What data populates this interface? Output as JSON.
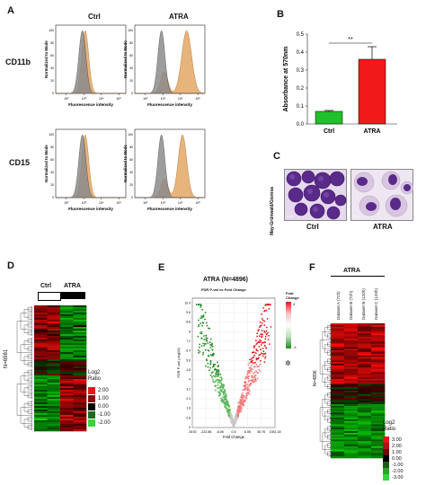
{
  "panels": {
    "A": {
      "letter": "A",
      "col_titles": [
        "Ctrl",
        "ATRA"
      ],
      "row_labels": [
        "CD11b",
        "CD15"
      ],
      "ylabel": "Normalized to Mode",
      "xlabel": "Fluorescence intensity",
      "ticks": [
        "10²",
        "10³",
        "10⁴",
        "10⁵"
      ],
      "yticks": [
        "0",
        "20",
        "40",
        "60",
        "80",
        "100"
      ]
    },
    "B": {
      "letter": "B",
      "sig": "**"
    },
    "C": {
      "letter": "C",
      "stain": "May-Grünwald/Giemsa",
      "labels": [
        "Ctrl",
        "ATRA"
      ],
      "scale": "8 μm"
    },
    "D": {
      "letter": "D",
      "cols": [
        "Ctrl",
        "ATRA"
      ],
      "n_label": "N=6981",
      "legend_title": "Log2\nRatio",
      "legend_title_l1": "Log2",
      "legend_title_l2": "Ratio",
      "legend_values": [
        "2.00",
        "1.00",
        "0.00",
        "-1.00",
        "-2.00"
      ],
      "legend_colors": [
        "#e8141b",
        "#8b0c0f",
        "#000000",
        "#1f6b1e",
        "#3bd33a"
      ]
    },
    "E": {
      "letter": "E",
      "title": "ATRA (N=4896)",
      "subtitle": "FDR P-val vs Fold Change",
      "legend_title_l1": "Fold",
      "legend_title_l2": "Change",
      "legend_max": "4",
      "legend_min": "-4"
    },
    "F": {
      "letter": "F",
      "title": "ATRA",
      "cols": [
        "Dataset A (72h)",
        "Dataset B (72h)",
        "Dataset B (120h)",
        "Dataset C (120h)"
      ],
      "n_label": "N=4896",
      "legend_title_l1": "Log2",
      "legend_title_l2": "Ratio",
      "legend_values": [
        "3.00",
        "2.00",
        "1.00",
        "0.00",
        "-1.00",
        "-2.00",
        "-3.00"
      ],
      "legend_colors": [
        "#e8141b",
        "#b31015",
        "#6b0a0c",
        "#000000",
        "#185c17",
        "#2aa229",
        "#3bd33a"
      ]
    }
  },
  "chart_data": [
    {
      "type": "bar",
      "panel": "B",
      "categories": [
        "Ctrl",
        "ATRA"
      ],
      "values": [
        0.07,
        0.36
      ],
      "errors": [
        0.005,
        0.07
      ],
      "colors": [
        "#22c02a",
        "#f01a1a"
      ],
      "ylabel": "Absorbance at 570nm",
      "ylim": [
        0,
        0.5
      ],
      "yticks": [
        "0.0",
        "0.1",
        "0.2",
        "0.3",
        "0.4",
        "0.5"
      ]
    },
    {
      "type": "scatter",
      "panel": "E",
      "title": "FDR P-val vs Fold Change",
      "xlabel": "Fold Change",
      "ylabel": "FDR P-val (-log10)",
      "x_ticks": [
        "-8192",
        "-222.86",
        "-6.06",
        "0.5",
        "6.06",
        "36.76",
        "1351.18"
      ],
      "y_ticks": [
        "0",
        "0.8",
        "1.6",
        "2.4",
        "3.2",
        "4",
        "4.8",
        "5.6",
        "6.4",
        "7.2",
        "8",
        "8.8",
        "9.6",
        "10.4"
      ],
      "ylim": [
        0,
        10.8
      ]
    }
  ]
}
